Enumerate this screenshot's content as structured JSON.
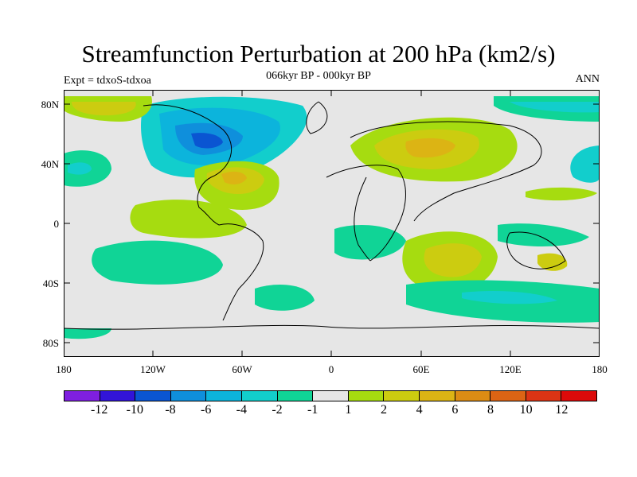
{
  "title": "Streamfunction Perturbation at 200 hPa (km2/s)",
  "subtitle": "066kyr BP - 000kyr BP",
  "left_label": "Expt = tdxoS-tdxoa",
  "right_label": "ANN",
  "axes": {
    "y_ticks": [
      "80N",
      "40N",
      "0",
      "40S",
      "80S"
    ],
    "x_ticks": [
      "180",
      "120W",
      "60W",
      "0",
      "60E",
      "120E",
      "180"
    ]
  },
  "colorbar": {
    "labels": [
      "-12",
      "-10",
      "-8",
      "-6",
      "-4",
      "-2",
      "-1",
      "1",
      "2",
      "4",
      "6",
      "8",
      "10",
      "12"
    ],
    "colors": [
      "#7f1fe0",
      "#3214d8",
      "#0a55d2",
      "#0f8fdc",
      "#0cb4dc",
      "#12cecc",
      "#10d496",
      "#e6e6e6",
      "#a6dc10",
      "#cccc10",
      "#dcb414",
      "#dc8c14",
      "#dc6414",
      "#dc3414",
      "#dc0a0a"
    ]
  }
}
